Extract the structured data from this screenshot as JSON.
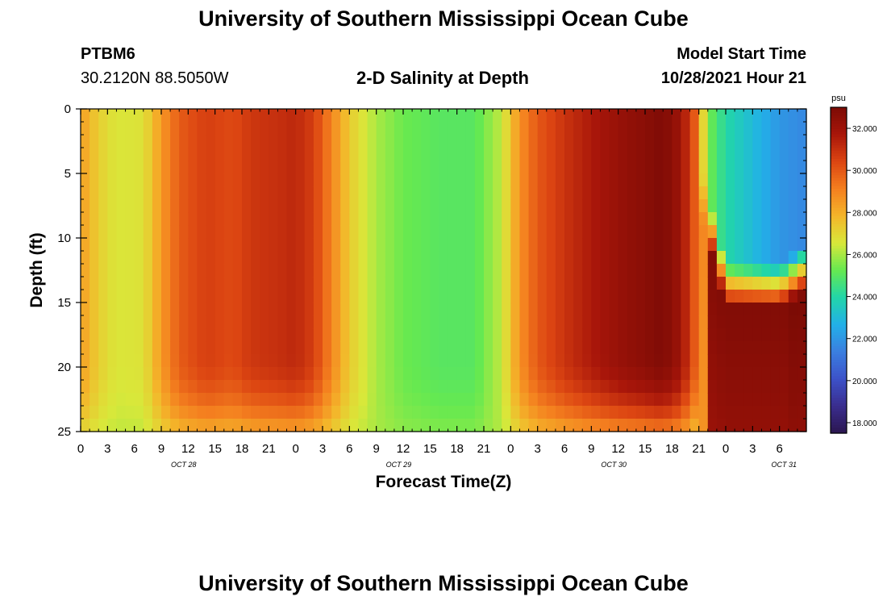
{
  "header": {
    "title": "University of Southern Mississippi Ocean Cube",
    "station": "PTBM6",
    "coords": "30.2120N  88.5050W",
    "plot_title": "2-D Salinity at Depth",
    "model_label": "Model Start Time",
    "model_time": "10/28/2021 Hour 21"
  },
  "footer": {
    "title": "University of Southern Mississippi Ocean Cube"
  },
  "colors": {
    "scale": [
      "#2b1650",
      "#3a2d8e",
      "#3c52c9",
      "#3b7fe0",
      "#22b0e8",
      "#22d6a8",
      "#66e950",
      "#d9e83a",
      "#f4b52a",
      "#f47f1f",
      "#dc4512",
      "#a8160a",
      "#7c0b05"
    ]
  },
  "chart_data": {
    "type": "heatmap",
    "title": "2-D Salinity at Depth",
    "xlabel": "Forecast Time(Z)",
    "ylabel": "Depth (ft)",
    "xlim": [
      0,
      81
    ],
    "ylim": [
      25,
      0
    ],
    "y_ticks": [
      0,
      5,
      10,
      15,
      20,
      25
    ],
    "x_tick_labels": [
      "0",
      "3",
      "6",
      "9",
      "12",
      "15",
      "18",
      "21",
      "0",
      "3",
      "6",
      "9",
      "12",
      "15",
      "18",
      "21",
      "0",
      "3",
      "6",
      "9",
      "12",
      "15",
      "18",
      "21",
      "0",
      "3",
      "6"
    ],
    "day_labels": [
      {
        "label": "OCT 28",
        "hour": 11.5
      },
      {
        "label": "OCT 29",
        "hour": 35.5
      },
      {
        "label": "OCT 30",
        "hour": 59.5
      },
      {
        "label": "OCT 31",
        "hour": 78.5
      }
    ],
    "colorbar": {
      "unit": "psu",
      "min": 17.5,
      "max": 33,
      "ticks": [
        "18.000",
        "20.000",
        "22.000",
        "24.000",
        "26.000",
        "28.000",
        "30.000",
        "32.000"
      ]
    },
    "surface_salinity_by_hour": [
      [
        0,
        28.4
      ],
      [
        2,
        27.2
      ],
      [
        4,
        26.6
      ],
      [
        7,
        26.7
      ],
      [
        9,
        28.5
      ],
      [
        11,
        29.9
      ],
      [
        14,
        30.6
      ],
      [
        17,
        30.3
      ],
      [
        19,
        30.8
      ],
      [
        22,
        31.0
      ],
      [
        24,
        31.2
      ],
      [
        26,
        30.6
      ],
      [
        28,
        29.0
      ],
      [
        30,
        27.3
      ],
      [
        33,
        26.0
      ],
      [
        36,
        25.3
      ],
      [
        40,
        25.0
      ],
      [
        44,
        25.0
      ],
      [
        47,
        26.3
      ],
      [
        49,
        28.7
      ],
      [
        51,
        30.0
      ],
      [
        54,
        30.9
      ],
      [
        57,
        31.6
      ],
      [
        60,
        32.2
      ],
      [
        63,
        32.6
      ],
      [
        65,
        32.9
      ],
      [
        67,
        32.0
      ],
      [
        68.5,
        30.0
      ],
      [
        70,
        25.5
      ],
      [
        72,
        24.0
      ],
      [
        75,
        23.0
      ],
      [
        78,
        22.0
      ],
      [
        81,
        21.6
      ]
    ],
    "notes": "Vertically mostly uniform; bottom layer fresher under high-salinity periods; low-salinity pocket (about 20-24 psu) from hour 69 onward above about 12 ft, with saltier water below."
  }
}
